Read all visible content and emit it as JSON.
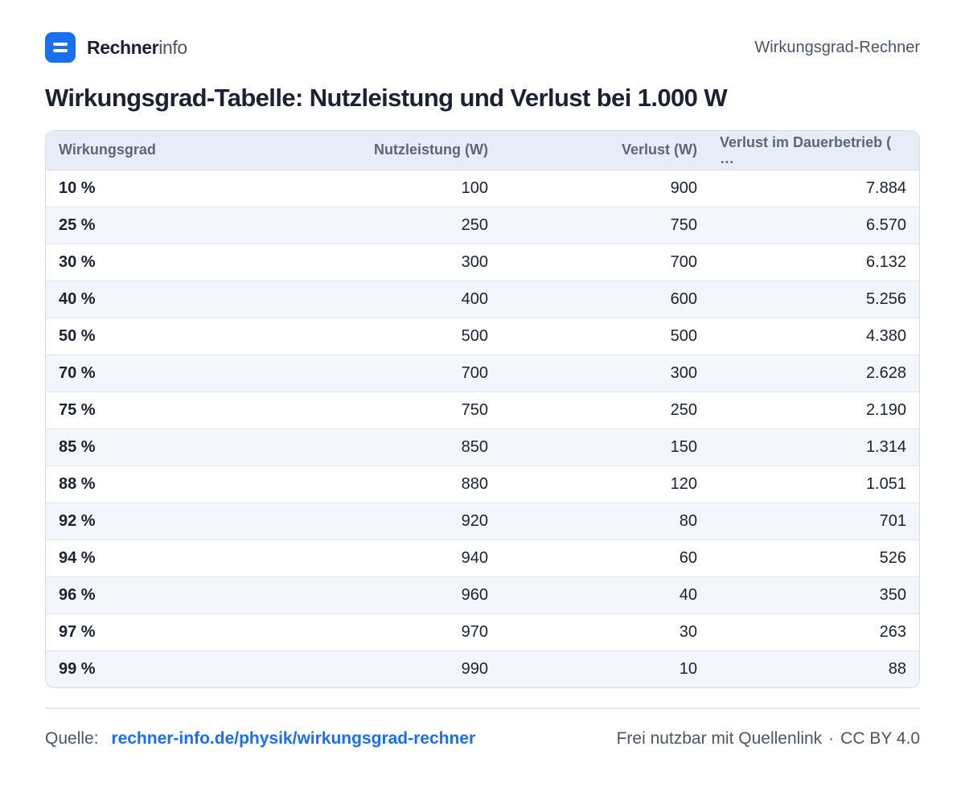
{
  "header": {
    "brand_strong": "Rechner",
    "brand_light": "info",
    "right_text": "Wirkungsgrad-Rechner"
  },
  "title": "Wirkungsgrad-Tabelle: Nutzleistung und Verlust bei 1.000 W",
  "table": {
    "columns": [
      "Wirkungsgrad",
      "Nutzleistung (W)",
      "Verlust (W)",
      "Verlust im Dauerbetrieb ( …"
    ],
    "rows": [
      [
        "10 %",
        "100",
        "900",
        "7.884"
      ],
      [
        "25 %",
        "250",
        "750",
        "6.570"
      ],
      [
        "30 %",
        "300",
        "700",
        "6.132"
      ],
      [
        "40 %",
        "400",
        "600",
        "5.256"
      ],
      [
        "50 %",
        "500",
        "500",
        "4.380"
      ],
      [
        "70 %",
        "700",
        "300",
        "2.628"
      ],
      [
        "75 %",
        "750",
        "250",
        "2.190"
      ],
      [
        "85 %",
        "850",
        "150",
        "1.314"
      ],
      [
        "88 %",
        "880",
        "120",
        "1.051"
      ],
      [
        "92 %",
        "920",
        "80",
        "701"
      ],
      [
        "94 %",
        "940",
        "60",
        "526"
      ],
      [
        "96 %",
        "960",
        "40",
        "350"
      ],
      [
        "97 %",
        "970",
        "30",
        "263"
      ],
      [
        "99 %",
        "990",
        "10",
        "88"
      ]
    ]
  },
  "footer": {
    "source_label": "Quelle:",
    "source_link": "rechner-info.de/physik/wirkungsgrad-rechner",
    "license_text": "Frei nutzbar mit Quellenlink",
    "separator": "·",
    "license": "CC BY 4.0"
  }
}
